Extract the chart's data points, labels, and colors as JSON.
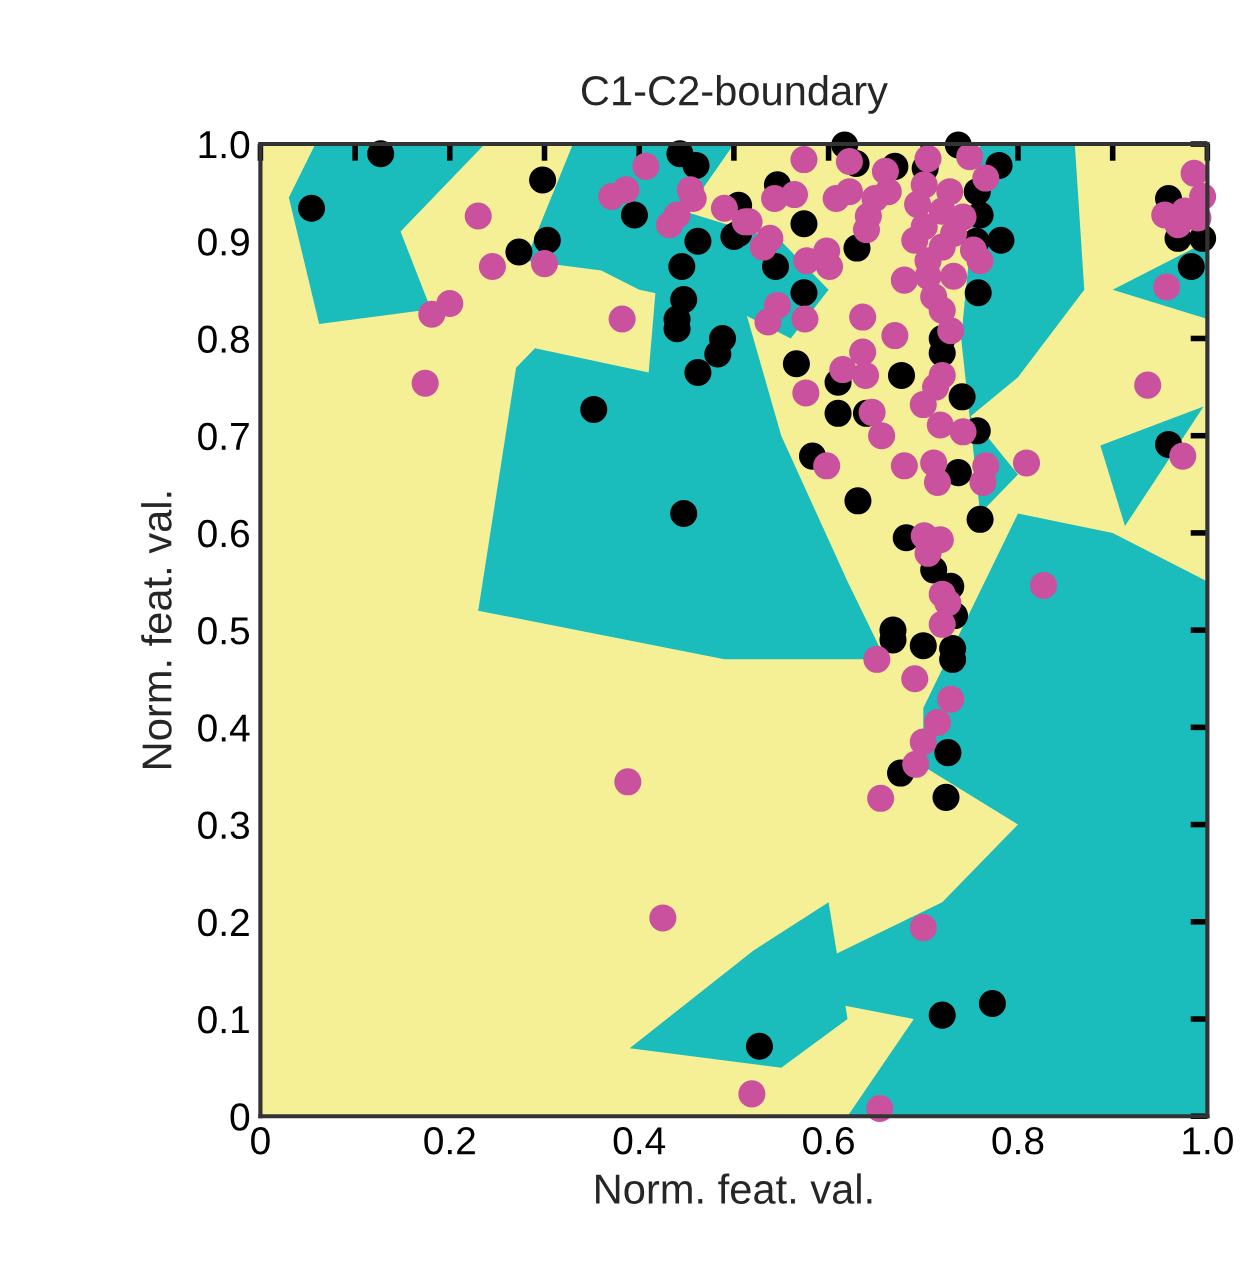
{
  "chart_data": {
    "type": "scatter",
    "title": "C1-C2-boundary",
    "xlabel": "Norm. feat. val.",
    "ylabel": "Norm. feat. val.",
    "xlim": [
      0,
      1
    ],
    "ylim": [
      0,
      1
    ],
    "xticks": [
      0,
      {
        "value": 0.1,
        "label": null
      },
      0.2,
      {
        "value": 0.3,
        "label": null
      },
      0.4,
      {
        "value": 0.5,
        "label": null
      },
      0.6,
      {
        "value": 0.7,
        "label": null
      },
      0.8,
      {
        "value": 0.9,
        "label": null
      },
      {
        "value": 1,
        "label": "1.0"
      }
    ],
    "yticks": [
      0,
      0.1,
      0.2,
      0.3,
      0.4,
      0.5,
      0.6,
      0.7,
      0.8,
      0.9,
      {
        "value": 1,
        "label": "1.0"
      }
    ],
    "grid": false,
    "legend": false,
    "marker": "circle",
    "series": [
      {
        "color": "#000000",
        "x": [
          0.127,
          0.054,
          0.298,
          0.273,
          0.303,
          0.395,
          0.443,
          0.46,
          0.462,
          0.445,
          0.447,
          0.44,
          0.44,
          0.488,
          0.483,
          0.462,
          0.352,
          0.447,
          0.505,
          0.668,
          0.668,
          0.7,
          0.731,
          0.731,
          0.733,
          0.726,
          0.676,
          0.724,
          0.72,
          0.773,
          0.527,
          0.617,
          0.737,
          0.78,
          0.67,
          0.629,
          0.546,
          0.505,
          0.5,
          0.574,
          0.63,
          0.76,
          0.756,
          0.782,
          0.544,
          0.574,
          0.758,
          0.72,
          0.72,
          0.566,
          0.677,
          0.61,
          0.61,
          0.64,
          0.741,
          0.757,
          0.583,
          0.737,
          0.631,
          0.76,
          0.682,
          0.711,
          0.729,
          0.959,
          0.969,
          0.995,
          0.983,
          0.959,
          0.702,
          0.757
        ],
        "values": [
          0.99,
          0.934,
          0.963,
          0.889,
          0.901,
          0.927,
          0.99,
          0.978,
          0.9,
          0.874,
          0.84,
          0.82,
          0.81,
          0.8,
          0.784,
          0.765,
          0.727,
          0.62,
          0.908,
          0.5,
          0.49,
          0.484,
          0.481,
          0.47,
          0.515,
          0.374,
          0.353,
          0.328,
          0.104,
          0.116,
          0.072,
          0.999,
          0.999,
          0.978,
          0.977,
          0.98,
          0.958,
          0.937,
          0.905,
          0.918,
          0.893,
          0.927,
          0.9,
          0.901,
          0.874,
          0.847,
          0.847,
          0.8,
          0.785,
          0.774,
          0.762,
          0.755,
          0.723,
          0.723,
          0.74,
          0.705,
          0.679,
          0.662,
          0.633,
          0.614,
          0.595,
          0.562,
          0.545,
          0.944,
          0.903,
          0.903,
          0.874,
          0.691,
          0.975,
          0.951
        ]
      },
      {
        "color": "#c9519e",
        "x": [
          0.407,
          0.371,
          0.386,
          0.454,
          0.457,
          0.49,
          0.512,
          0.44,
          0.432,
          0.23,
          0.245,
          0.3,
          0.2,
          0.181,
          0.382,
          0.174,
          0.388,
          0.425,
          0.519,
          0.651,
          0.691,
          0.729,
          0.715,
          0.7,
          0.692,
          0.655,
          0.7,
          0.654,
          0.72,
          0.726,
          0.574,
          0.622,
          0.705,
          0.749,
          0.766,
          0.701,
          0.728,
          0.694,
          0.72,
          0.742,
          0.701,
          0.732,
          0.691,
          0.72,
          0.753,
          0.705,
          0.76,
          0.68,
          0.705,
          0.732,
          0.711,
          0.72,
          0.729,
          0.66,
          0.663,
          0.649,
          0.642,
          0.64,
          0.608,
          0.622,
          0.564,
          0.543,
          0.516,
          0.538,
          0.531,
          0.598,
          0.601,
          0.577,
          0.546,
          0.536,
          0.575,
          0.636,
          0.67,
          0.636,
          0.615,
          0.639,
          0.576,
          0.7,
          0.713,
          0.72,
          0.646,
          0.656,
          0.718,
          0.742,
          0.68,
          0.711,
          0.766,
          0.598,
          0.715,
          0.763,
          0.809,
          0.701,
          0.718,
          0.705,
          0.72,
          0.827,
          0.937,
          0.974,
          0.957,
          0.986,
          0.995,
          0.976,
          0.955,
          0.99,
          0.969
        ],
        "values": [
          0.977,
          0.946,
          0.953,
          0.953,
          0.944,
          0.934,
          0.92,
          0.927,
          0.917,
          0.926,
          0.874,
          0.877,
          0.836,
          0.825,
          0.82,
          0.754,
          0.344,
          0.204,
          0.023,
          0.47,
          0.45,
          0.429,
          0.405,
          0.385,
          0.362,
          0.327,
          0.194,
          0.008,
          0.506,
          0.528,
          0.984,
          0.982,
          0.985,
          0.987,
          0.965,
          0.958,
          0.951,
          0.938,
          0.931,
          0.925,
          0.915,
          0.908,
          0.901,
          0.894,
          0.891,
          0.88,
          0.88,
          0.86,
          0.864,
          0.864,
          0.843,
          0.829,
          0.808,
          0.972,
          0.951,
          0.944,
          0.926,
          0.912,
          0.944,
          0.951,
          0.948,
          0.944,
          0.92,
          0.903,
          0.894,
          0.89,
          0.874,
          0.88,
          0.834,
          0.817,
          0.82,
          0.822,
          0.803,
          0.786,
          0.768,
          0.762,
          0.744,
          0.732,
          0.75,
          0.762,
          0.724,
          0.7,
          0.711,
          0.704,
          0.669,
          0.672,
          0.669,
          0.669,
          0.652,
          0.652,
          0.672,
          0.597,
          0.593,
          0.579,
          0.537,
          0.546,
          0.752,
          0.679,
          0.853,
          0.97,
          0.946,
          0.931,
          0.927,
          0.924,
          0.917
        ]
      }
    ]
  }
}
